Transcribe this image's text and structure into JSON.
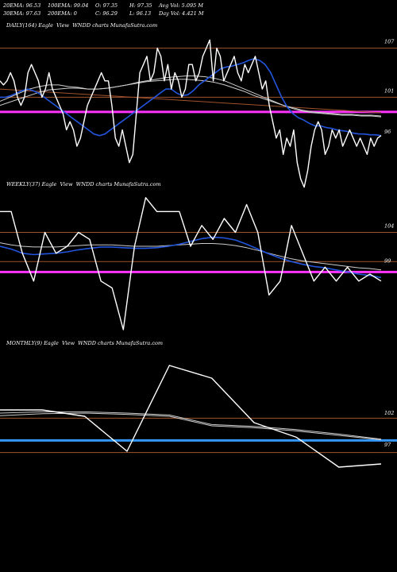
{
  "header": {
    "row1": [
      "20EMA: 96.53",
      "100EMA: 99.04",
      "O: 97.35",
      "H: 97.35",
      "Avg Vol: 5.095 M"
    ],
    "row2": [
      "30EMA: 97.63",
      "200EMA: 0",
      "C: 96.29",
      "L: 96.13",
      "Day Vol: 4.421 M"
    ]
  },
  "colors": {
    "background": "#000000",
    "price": "#ffffff",
    "ema_fast": "#2255dd",
    "ema_slow": "#cccccc",
    "magenta": "#ff33ff",
    "blue_level": "#3399ff",
    "level_line": "#a0522d"
  },
  "chart_data": [
    {
      "type": "line",
      "title": "DAILY(164) Eagle  View  WNDD charts MunafaSutra.com",
      "y_tick_labels": [
        "107",
        "101",
        "96"
      ],
      "ylim": [
        92,
        109
      ],
      "levels": [
        107,
        101
      ],
      "magenta_level": 99.2,
      "price": [
        103,
        102.5,
        103,
        104,
        103,
        101,
        100,
        101,
        104,
        105,
        104,
        103,
        101,
        102,
        104,
        102,
        101,
        100,
        99,
        97,
        98,
        97,
        95,
        96,
        98,
        100,
        101,
        102,
        103,
        104,
        103,
        103,
        100,
        96,
        95,
        97,
        95,
        93,
        94,
        99,
        104,
        105,
        106,
        103,
        104,
        107,
        106,
        103,
        105,
        102,
        104,
        103,
        101,
        102,
        105,
        105,
        103,
        104,
        106,
        107,
        108,
        103,
        107,
        106,
        103,
        104,
        105,
        106,
        104,
        103,
        105,
        104,
        105,
        106,
        104,
        102,
        103,
        100,
        98,
        96,
        97,
        94,
        96,
        95,
        97,
        93,
        91,
        90,
        92,
        95,
        97,
        98,
        97,
        94,
        95,
        97,
        96,
        97,
        95,
        96,
        97,
        96,
        95,
        96,
        95,
        94,
        96,
        95,
        96,
        96.3
      ],
      "ema_fast": [
        101,
        101,
        101.2,
        101.5,
        101.8,
        102,
        101.8,
        101.5,
        101,
        100.5,
        100,
        99.5,
        99,
        98.5,
        98,
        97.5,
        97,
        96.5,
        96.3,
        96.5,
        97,
        97.5,
        98,
        98.5,
        99,
        99.5,
        100,
        100.5,
        101,
        101.5,
        102,
        102,
        101.5,
        101.2,
        101.3,
        101.8,
        102.5,
        103,
        103.5,
        104,
        104.5,
        104.7,
        104.8,
        105,
        105.2,
        105.5,
        105.7,
        105.5,
        105,
        104,
        102.5,
        101,
        99.8,
        99,
        98.5,
        98.2,
        97.8,
        97.5,
        97.5,
        97.3,
        97.2,
        97,
        96.9,
        96.8,
        96.6,
        96.5,
        96.5,
        96.4,
        96.4,
        96.3
      ],
      "ema_slow": [
        100.5,
        101,
        101.5,
        102,
        102.3,
        102.5,
        102.5,
        102.3,
        102.2,
        102,
        102,
        102.1,
        102.3,
        102.5,
        102.8,
        103,
        103.2,
        103.4,
        103.5,
        103.6,
        103.6,
        103.5,
        103.3,
        103,
        102.5,
        102,
        101.5,
        101,
        100.5,
        100,
        99.6,
        99.3,
        99.1,
        99,
        98.9,
        98.8,
        98.8,
        98.7,
        98.7,
        98.6
      ],
      "ema_slow2": [
        100,
        100.4,
        100.8,
        101.2,
        101.6,
        101.9,
        102,
        102.1,
        102.1,
        102,
        102,
        102.1,
        102.3,
        102.5,
        102.7,
        102.9,
        103,
        103.1,
        103.2,
        103.2,
        103.1,
        103,
        102.8,
        102.5,
        102.1,
        101.7,
        101.2,
        100.8,
        100.4,
        100,
        99.7,
        99.4,
        99.2,
        99.1,
        99,
        98.9,
        98.9,
        98.8,
        98.8,
        98.7
      ],
      "ema_brown": [
        102,
        101.9,
        101.8,
        101.7,
        101.6,
        101.5,
        101.4,
        101.3,
        101.2,
        101.1,
        101,
        100.9,
        100.8,
        100.7,
        100.6,
        100.5,
        100.4,
        100.3,
        100.2,
        100.1,
        100,
        99.9,
        99.8,
        99.7,
        99.6,
        99.5,
        99.4,
        99.3,
        99.2,
        99.1
      ]
    },
    {
      "type": "line",
      "title": "WEEKLY(37) Eagle  View  WNDD charts MunafaSutra.com",
      "y_tick_labels": [
        "104",
        "99"
      ],
      "ylim": [
        90,
        110
      ],
      "levels": [
        104,
        99.8
      ],
      "magenta_level": 98.3,
      "price": [
        107,
        107,
        101,
        97,
        104,
        101,
        102,
        104,
        103,
        97,
        96,
        90,
        102,
        109,
        107,
        107,
        107,
        102,
        105,
        103,
        106,
        104,
        108,
        104,
        95,
        97,
        105,
        101,
        97,
        99,
        97,
        99,
        97,
        98,
        97
      ],
      "ema_fast": [
        102,
        101.6,
        101,
        100.8,
        100.9,
        101,
        101.2,
        101.5,
        101.7,
        101.9,
        101.9,
        101.8,
        101.7,
        101.7,
        101.8,
        102,
        102.3,
        102.7,
        103.1,
        103.3,
        103.2,
        102.9,
        102.3,
        101.6,
        100.9,
        100.3,
        99.8,
        99.4,
        99.1,
        98.9,
        98.6,
        98.3,
        98,
        97.8,
        97.5
      ],
      "ema_slow": [
        102.5,
        102.2,
        102,
        101.9,
        101.9,
        101.9,
        102,
        102.1,
        102.2,
        102.2,
        102.2,
        102.1,
        102,
        102,
        102,
        102.1,
        102.2,
        102.3,
        102.4,
        102.4,
        102.3,
        102.1,
        101.8,
        101.4,
        101,
        100.6,
        100.2,
        99.9,
        99.7,
        99.5,
        99.3,
        99.1,
        98.9,
        98.8,
        98.6
      ]
    },
    {
      "type": "line",
      "title": "MONTHLY(9) Eagle  View  WNDD charts MunafaSutra.com",
      "y_tick_labels": [
        "102",
        "97"
      ],
      "ylim": [
        93,
        113
      ],
      "levels": [
        102.2,
        96.8
      ],
      "blue_level": 98.7,
      "price": [
        103.5,
        103.5,
        102.5,
        97,
        110.5,
        108.5,
        101.5,
        99.2,
        94.5,
        95
      ],
      "ema_slow": [
        103,
        103.2,
        103.2,
        103,
        102.7,
        101.2,
        100.9,
        100.4,
        99.7,
        98.9
      ],
      "ema_slow2": [
        102.6,
        102.9,
        103,
        102.8,
        102.5,
        101,
        100.7,
        100.2,
        99.5,
        98.8
      ]
    }
  ]
}
